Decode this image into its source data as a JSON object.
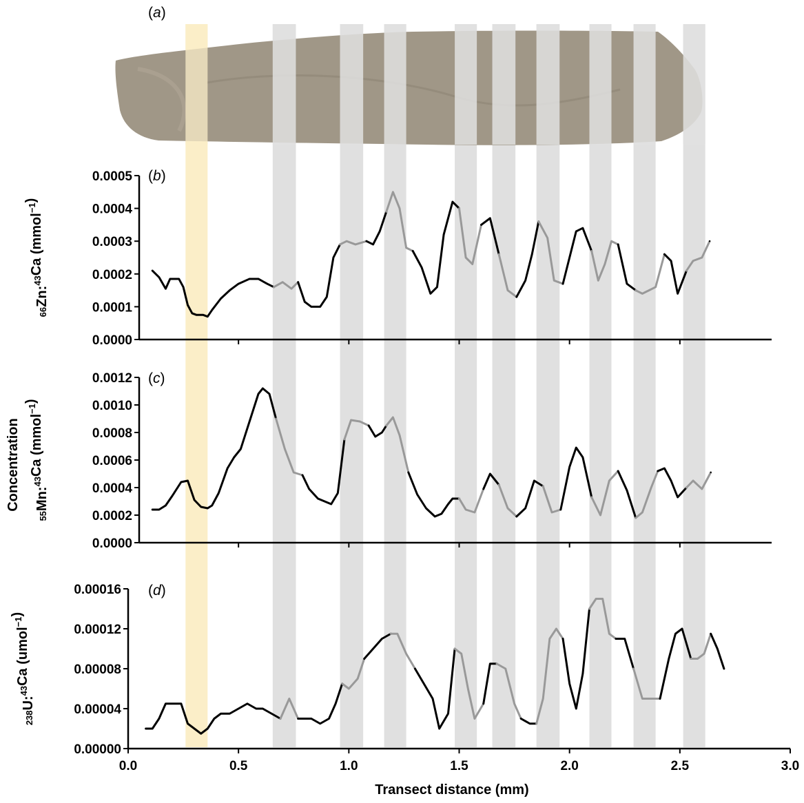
{
  "figure": {
    "shared_ylabel": "Concentration",
    "xlabel": "Transect distance (mm)",
    "x_ticks": [
      "0.0",
      "0.5",
      "1.0",
      "1.5",
      "2.0",
      "2.5",
      "3.0"
    ],
    "xlim": [
      0,
      3.0
    ],
    "panel_a_label": "a",
    "colors": {
      "highlight_band": "#fbeec8",
      "grey_band": "#e0e0e0",
      "line_dark": "#000000",
      "line_grey": "#999999",
      "otolith": "#a09787"
    },
    "bands": [
      {
        "type": "highlight",
        "x0": 0.26,
        "x1": 0.36
      },
      {
        "type": "grey",
        "x0": 0.655,
        "x1": 0.76
      },
      {
        "type": "grey",
        "x0": 0.96,
        "x1": 1.065
      },
      {
        "type": "grey",
        "x0": 1.16,
        "x1": 1.26
      },
      {
        "type": "grey",
        "x0": 1.48,
        "x1": 1.58
      },
      {
        "type": "grey",
        "x0": 1.65,
        "x1": 1.755
      },
      {
        "type": "grey",
        "x0": 1.85,
        "x1": 1.955
      },
      {
        "type": "grey",
        "x0": 2.09,
        "x1": 2.19
      },
      {
        "type": "grey",
        "x0": 2.29,
        "x1": 2.39
      },
      {
        "type": "grey",
        "x0": 2.515,
        "x1": 2.615
      }
    ]
  },
  "chart_data": [
    {
      "panel": "b",
      "type": "line",
      "ylabel": "66Zn:43Ca (mmol-1)",
      "ylabel_parts": {
        "iso1": "66",
        "el1": "Zn:",
        "iso2": "43",
        "el2": "Ca (mmol",
        "exp": "−1",
        "end": ")"
      },
      "ylim": [
        0,
        0.0005
      ],
      "y_ticks": [
        "0.0000",
        "0.0001",
        "0.0002",
        "0.0003",
        "0.0004",
        "0.0005"
      ],
      "x": [
        0.11,
        0.14,
        0.17,
        0.19,
        0.23,
        0.25,
        0.27,
        0.29,
        0.31,
        0.34,
        0.36,
        0.38,
        0.42,
        0.46,
        0.5,
        0.55,
        0.59,
        0.63,
        0.66,
        0.7,
        0.74,
        0.77,
        0.8,
        0.83,
        0.87,
        0.9,
        0.93,
        0.96,
        0.99,
        1.03,
        1.08,
        1.11,
        1.14,
        1.17,
        1.2,
        1.23,
        1.26,
        1.29,
        1.33,
        1.37,
        1.4,
        1.43,
        1.47,
        1.5,
        1.53,
        1.56,
        1.6,
        1.64,
        1.68,
        1.72,
        1.76,
        1.8,
        1.83,
        1.86,
        1.9,
        1.93,
        1.97,
        2.0,
        2.03,
        2.06,
        2.1,
        2.13,
        2.16,
        2.19,
        2.22,
        2.26,
        2.3,
        2.33,
        2.36,
        2.39,
        2.43,
        2.46,
        2.49,
        2.53,
        2.56,
        2.6,
        2.635
      ],
      "values": [
        0.00021,
        0.00019,
        0.000155,
        0.000185,
        0.000185,
        0.00016,
        0.000105,
        8e-05,
        7.5e-05,
        7.5e-05,
        7e-05,
        9e-05,
        0.000125,
        0.00015,
        0.00017,
        0.000185,
        0.000185,
        0.00017,
        0.00016,
        0.000175,
        0.000155,
        0.000175,
        0.000115,
        0.0001,
        0.0001,
        0.00013,
        0.00025,
        0.00029,
        0.0003,
        0.00029,
        0.0003,
        0.00029,
        0.00033,
        0.00039,
        0.00045,
        0.0004,
        0.00028,
        0.00027,
        0.00022,
        0.00014,
        0.00016,
        0.00032,
        0.00042,
        0.0004,
        0.00025,
        0.00023,
        0.00035,
        0.00037,
        0.00026,
        0.00015,
        0.00013,
        0.00018,
        0.00026,
        0.00036,
        0.00031,
        0.00018,
        0.00017,
        0.00025,
        0.00033,
        0.00034,
        0.00027,
        0.00018,
        0.00023,
        0.0003,
        0.00029,
        0.00017,
        0.00015,
        0.00014,
        0.00015,
        0.00016,
        0.00026,
        0.00024,
        0.00014,
        0.00021,
        0.00024,
        0.00025,
        0.0003
      ]
    },
    {
      "panel": "c",
      "type": "line",
      "ylabel": "55Mn:43Ca (mmol-1)",
      "ylabel_parts": {
        "iso1": "55",
        "el1": "Mn:",
        "iso2": "43",
        "el2": "Ca (mmol",
        "exp": "−1",
        "end": ")"
      },
      "ylim": [
        0,
        0.0012
      ],
      "y_ticks": [
        "0.0000",
        "0.0002",
        "0.0004",
        "0.0006",
        "0.0008",
        "0.0010",
        "0.0012"
      ],
      "x": [
        0.11,
        0.14,
        0.17,
        0.2,
        0.24,
        0.27,
        0.3,
        0.33,
        0.36,
        0.38,
        0.41,
        0.45,
        0.48,
        0.51,
        0.55,
        0.59,
        0.61,
        0.64,
        0.67,
        0.71,
        0.75,
        0.79,
        0.82,
        0.86,
        0.89,
        0.92,
        0.95,
        0.98,
        1.01,
        1.05,
        1.09,
        1.12,
        1.15,
        1.17,
        1.2,
        1.23,
        1.27,
        1.31,
        1.35,
        1.39,
        1.42,
        1.45,
        1.47,
        1.5,
        1.53,
        1.57,
        1.61,
        1.64,
        1.68,
        1.72,
        1.76,
        1.8,
        1.84,
        1.88,
        1.92,
        1.96,
        2.0,
        2.03,
        2.06,
        2.1,
        2.14,
        2.18,
        2.22,
        2.26,
        2.3,
        2.33,
        2.37,
        2.4,
        2.43,
        2.46,
        2.49,
        2.53,
        2.56,
        2.6,
        2.64
      ],
      "values": [
        0.00024,
        0.00024,
        0.00027,
        0.00034,
        0.00044,
        0.00045,
        0.00031,
        0.00026,
        0.00025,
        0.00027,
        0.00036,
        0.00054,
        0.00062,
        0.00068,
        0.00088,
        0.00108,
        0.00112,
        0.00108,
        0.0009,
        0.00068,
        0.00051,
        0.00049,
        0.00039,
        0.00032,
        0.0003,
        0.00028,
        0.00036,
        0.00075,
        0.00089,
        0.00088,
        0.00085,
        0.00077,
        0.0008,
        0.00085,
        0.00091,
        0.00078,
        0.00051,
        0.00035,
        0.00025,
        0.00019,
        0.00021,
        0.00028,
        0.00032,
        0.00032,
        0.00024,
        0.00022,
        0.00039,
        0.0005,
        0.00042,
        0.00025,
        0.00019,
        0.00025,
        0.00045,
        0.00041,
        0.00022,
        0.00024,
        0.00055,
        0.00069,
        0.00062,
        0.00033,
        0.0002,
        0.00045,
        0.00052,
        0.00038,
        0.00018,
        0.00022,
        0.0004,
        0.00052,
        0.00054,
        0.00045,
        0.00033,
        0.0004,
        0.00045,
        0.00039,
        0.00051
      ]
    },
    {
      "panel": "d",
      "type": "line",
      "ylabel": "238U:43Ca (umol-1)",
      "ylabel_parts": {
        "iso1": "238",
        "el1": "U:",
        "iso2": "43",
        "el2": "Ca (umol",
        "exp": "−1",
        "end": ")"
      },
      "ylim": [
        0,
        0.00016
      ],
      "y_ticks": [
        "0.00000",
        "0.00004",
        "0.00008",
        "0.00012",
        "0.00016"
      ],
      "x": [
        0.08,
        0.11,
        0.14,
        0.17,
        0.2,
        0.24,
        0.27,
        0.3,
        0.33,
        0.36,
        0.39,
        0.42,
        0.46,
        0.5,
        0.54,
        0.58,
        0.61,
        0.65,
        0.69,
        0.73,
        0.77,
        0.8,
        0.83,
        0.87,
        0.91,
        0.94,
        0.97,
        1.0,
        1.04,
        1.07,
        1.11,
        1.15,
        1.19,
        1.22,
        1.26,
        1.3,
        1.34,
        1.38,
        1.41,
        1.45,
        1.48,
        1.51,
        1.54,
        1.57,
        1.61,
        1.64,
        1.67,
        1.71,
        1.75,
        1.78,
        1.82,
        1.85,
        1.88,
        1.91,
        1.94,
        1.97,
        2.0,
        2.03,
        2.06,
        2.09,
        2.12,
        2.15,
        2.18,
        2.21,
        2.25,
        2.29,
        2.33,
        2.37,
        2.41,
        2.45,
        2.48,
        2.51,
        2.55,
        2.58,
        2.61,
        2.64,
        2.67,
        2.7
      ],
      "values": [
        2e-05,
        2e-05,
        3e-05,
        4.5e-05,
        4.5e-05,
        4.5e-05,
        2.5e-05,
        2e-05,
        1.5e-05,
        2e-05,
        3e-05,
        3.5e-05,
        3.5e-05,
        4e-05,
        4.5e-05,
        4e-05,
        4e-05,
        3.5e-05,
        3e-05,
        5e-05,
        3e-05,
        3e-05,
        3e-05,
        2.5e-05,
        3e-05,
        4.5e-05,
        6.5e-05,
        6e-05,
        7e-05,
        9e-05,
        0.0001,
        0.00011,
        0.000115,
        0.000115,
        9.5e-05,
        8e-05,
        6.5e-05,
        5e-05,
        2e-05,
        3.5e-05,
        0.0001,
        9.5e-05,
        6e-05,
        3e-05,
        4.5e-05,
        8.5e-05,
        8.5e-05,
        8e-05,
        4.5e-05,
        3e-05,
        2.5e-05,
        2.5e-05,
        5e-05,
        0.00011,
        0.00012,
        0.00011,
        6.5e-05,
        4e-05,
        7.5e-05,
        0.00014,
        0.00015,
        0.00015,
        0.000115,
        0.00011,
        0.00011,
        8e-05,
        5e-05,
        5e-05,
        5e-05,
        9e-05,
        0.000115,
        0.00012,
        9e-05,
        9e-05,
        9.5e-05,
        0.000115,
        0.0001,
        8e-05
      ]
    }
  ]
}
